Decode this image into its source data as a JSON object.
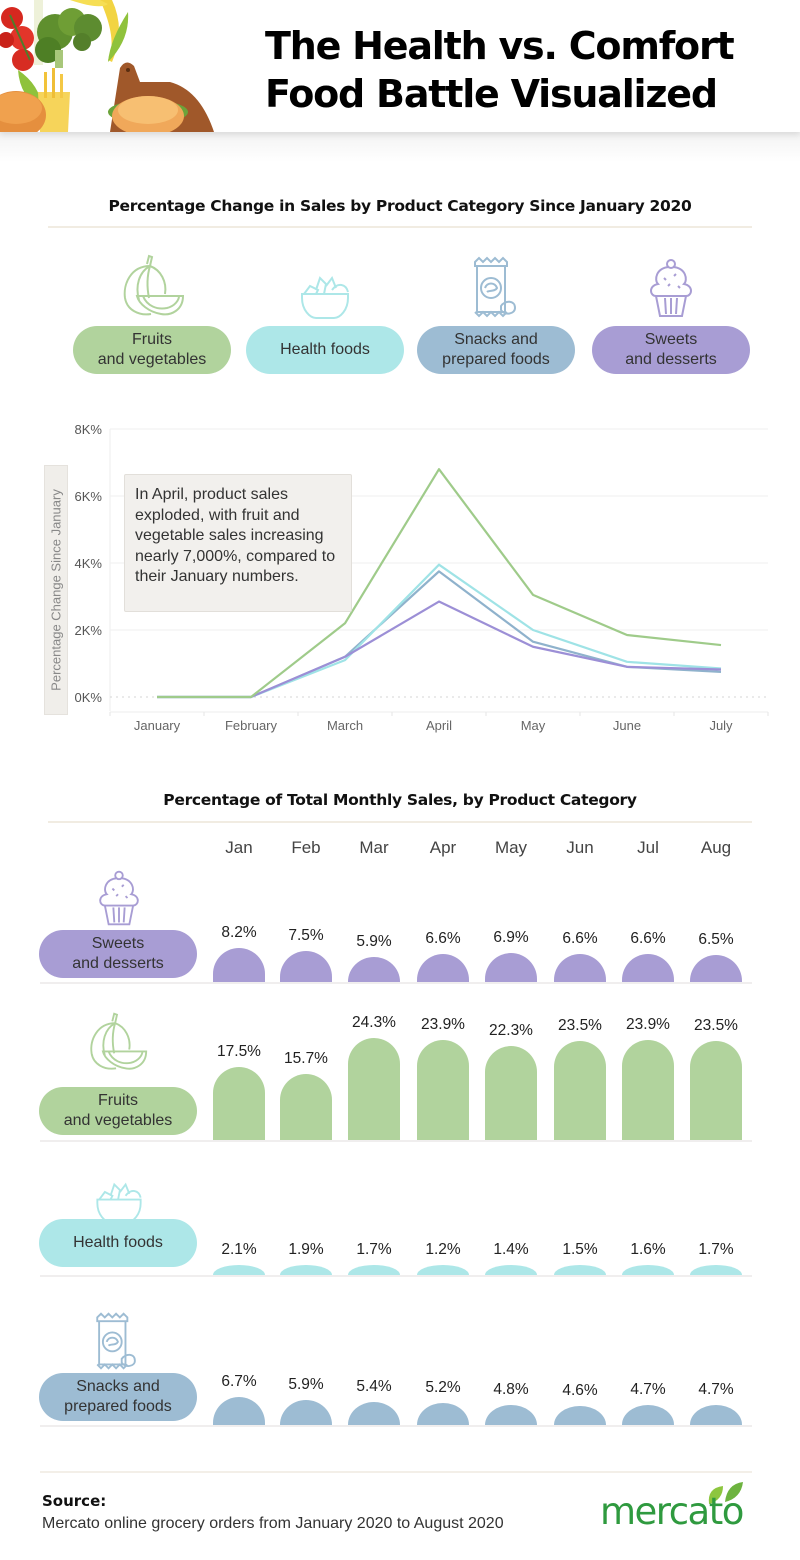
{
  "header": {
    "title": "The Health vs. Comfort Food Battle Visualized",
    "title_line1": "The Health vs. Comfort",
    "title_line2": "Food Battle Visualized",
    "image_icon": "food-collage-icon"
  },
  "colors": {
    "fruits": "#b1d39d",
    "health": "#ade7e8",
    "snacks": "#9dbcd3",
    "sweets": "#a89dd4",
    "fruits_line": "#9fcb8a",
    "health_line": "#9fe3e6",
    "snacks_line": "#8fb2cc",
    "sweets_line": "#9c8fd6",
    "brand_green": "#2f9a3f"
  },
  "categories": [
    {
      "key": "fruits",
      "label": "Fruits\nand vegetables",
      "icon": "melon-icon"
    },
    {
      "key": "health",
      "label": "Health foods",
      "icon": "salad-bowl-icon"
    },
    {
      "key": "snacks",
      "label": "Snacks and\nprepared foods",
      "icon": "chips-bag-icon"
    },
    {
      "key": "sweets",
      "label": "Sweets\nand desserts",
      "icon": "cupcake-icon"
    }
  ],
  "chart_data": [
    {
      "type": "line",
      "title": "Percentage Change in Sales by Product Category Since January 2020",
      "xlabel": "",
      "ylabel": "Percentage Change Since  January",
      "x": [
        "January",
        "February",
        "March",
        "April",
        "May",
        "June",
        "July"
      ],
      "ylim": [
        0,
        8000
      ],
      "yticks": [
        0,
        2000,
        4000,
        6000,
        8000
      ],
      "ytick_labels": [
        "0K%",
        "2K%",
        "4K%",
        "6K%",
        "8K%"
      ],
      "grid": true,
      "series": [
        {
          "name": "Fruits and vegetables",
          "key": "fruits",
          "values": [
            0,
            0,
            2200,
            6800,
            3050,
            1850,
            1550
          ]
        },
        {
          "name": "Health foods",
          "key": "health",
          "values": [
            0,
            0,
            1100,
            3950,
            2000,
            1050,
            850
          ]
        },
        {
          "name": "Snacks and prepared foods",
          "key": "snacks",
          "values": [
            0,
            0,
            1200,
            3750,
            1650,
            900,
            750
          ]
        },
        {
          "name": "Sweets and desserts",
          "key": "sweets",
          "values": [
            0,
            0,
            1200,
            2850,
            1500,
            900,
            820
          ]
        }
      ],
      "annotation": "In April, product sales exploded, with fruit and vegetable sales increasing nearly 7,000%, compared to their January numbers."
    },
    {
      "type": "bar",
      "title": "Percentage of Total Monthly Sales, by Product Category",
      "categories": [
        "Jan",
        "Feb",
        "Mar",
        "Apr",
        "May",
        "Jun",
        "Jul",
        "Aug"
      ],
      "unit": "%",
      "series": [
        {
          "name": "Sweets and desserts",
          "key": "sweets",
          "values": [
            8.2,
            7.5,
            5.9,
            6.6,
            6.9,
            6.6,
            6.6,
            6.5
          ]
        },
        {
          "name": "Fruits and vegetables",
          "key": "fruits",
          "values": [
            17.5,
            15.7,
            24.3,
            23.9,
            22.3,
            23.5,
            23.9,
            23.5
          ]
        },
        {
          "name": "Health foods",
          "key": "health",
          "values": [
            2.1,
            1.9,
            1.7,
            1.2,
            1.4,
            1.5,
            1.6,
            1.7
          ]
        },
        {
          "name": "Snacks and prepared foods",
          "key": "snacks",
          "values": [
            6.7,
            5.9,
            5.4,
            5.2,
            4.8,
            4.6,
            4.7,
            4.7
          ]
        }
      ]
    }
  ],
  "footer": {
    "source_title": "Source:",
    "source_text": "Mercato online grocery orders from January 2020 to August 2020",
    "logo_text": "mercato",
    "logo_icon": "leaf-icon"
  }
}
